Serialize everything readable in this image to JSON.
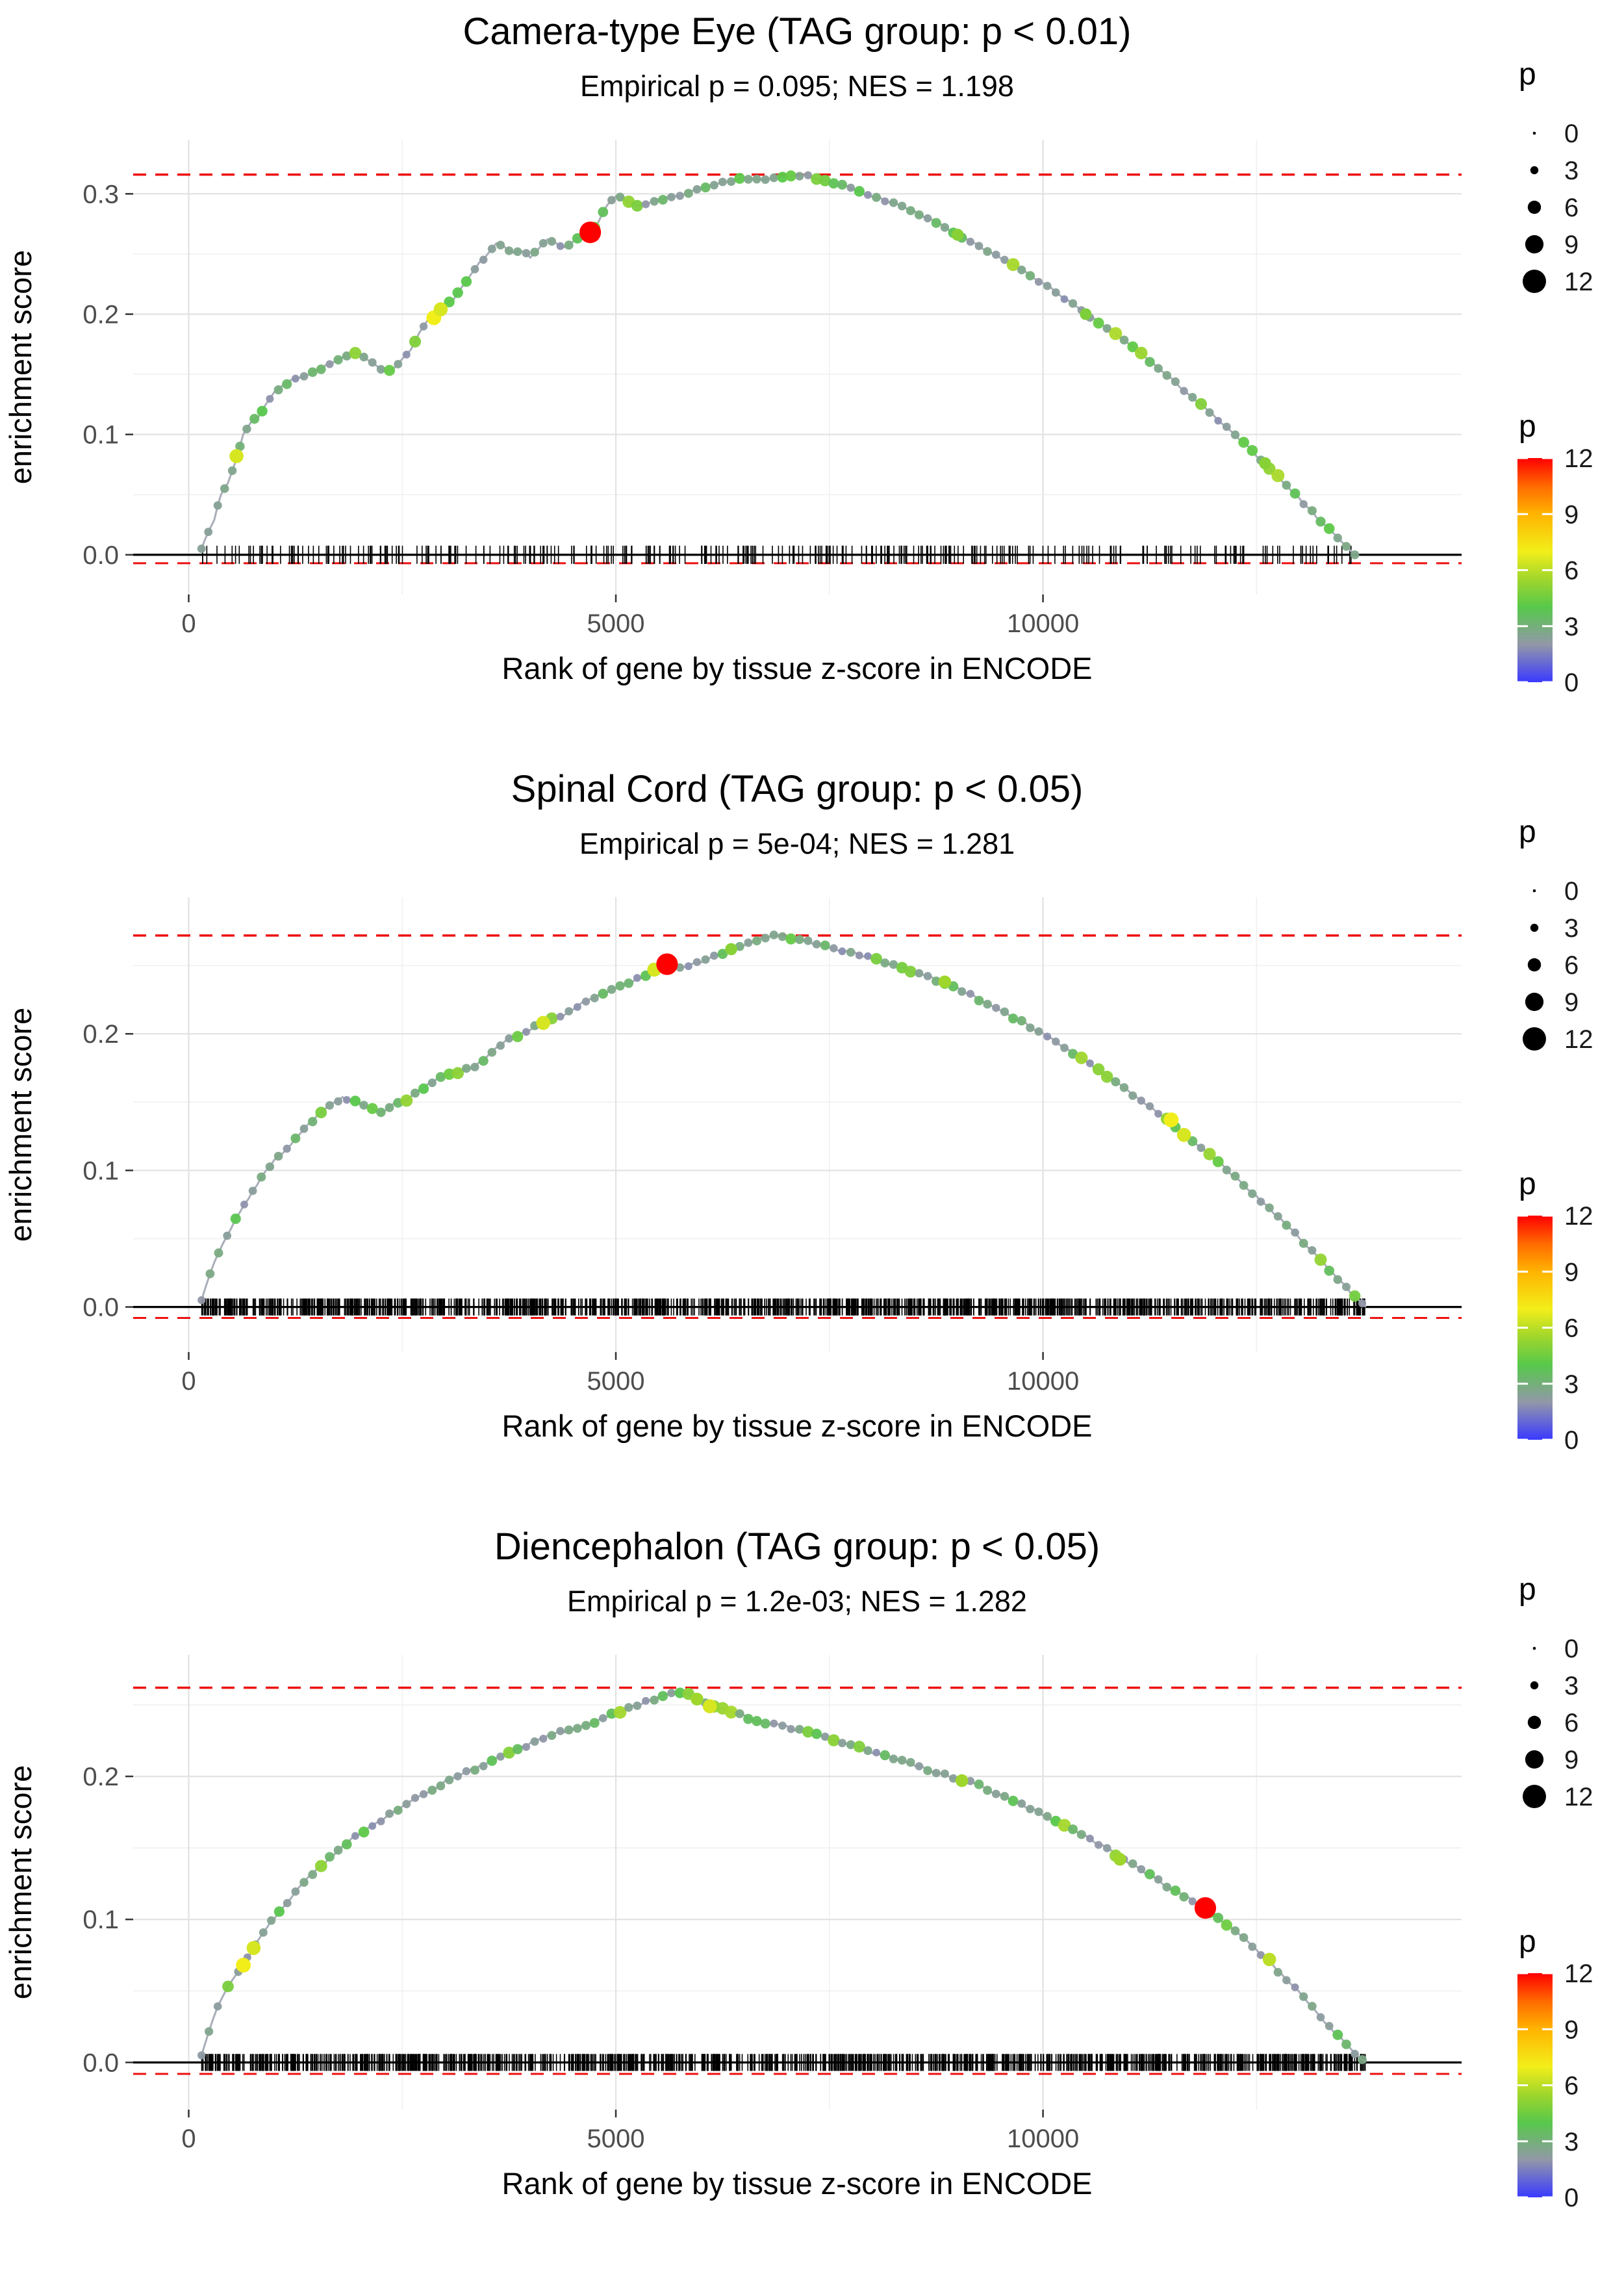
{
  "chart_data": [
    {
      "type": "line",
      "title": "Camera-type Eye (TAG group: p < 0.01)",
      "subtitle": "Empirical p = 0.095; NES = 1.198",
      "empirical_p": "0.095",
      "nes": 1.198,
      "xlabel": "Rank of gene by tissue z-score in ENCODE",
      "ylabel": "enrichment score",
      "xlim": [
        -650,
        14900
      ],
      "ylim": [
        -0.033,
        0.345
      ],
      "x_ticks": [
        0,
        5000,
        10000
      ],
      "y_ticks": [
        0.0,
        0.1,
        0.2,
        0.3
      ],
      "max_es": 0.316,
      "zero_line": 0.0,
      "min_dashed": -0.007,
      "grid": true,
      "curve": [
        [
          150,
          0.005
        ],
        [
          230,
          0.02
        ],
        [
          300,
          0.03
        ],
        [
          380,
          0.05
        ],
        [
          460,
          0.06
        ],
        [
          560,
          0.08
        ],
        [
          640,
          0.1
        ],
        [
          720,
          0.11
        ],
        [
          820,
          0.115
        ],
        [
          900,
          0.125
        ],
        [
          1000,
          0.135
        ],
        [
          1100,
          0.14
        ],
        [
          1250,
          0.147
        ],
        [
          1400,
          0.15
        ],
        [
          1550,
          0.155
        ],
        [
          1700,
          0.16
        ],
        [
          1850,
          0.165
        ],
        [
          2000,
          0.168
        ],
        [
          2100,
          0.162
        ],
        [
          2200,
          0.158
        ],
        [
          2300,
          0.152
        ],
        [
          2400,
          0.155
        ],
        [
          2500,
          0.162
        ],
        [
          2600,
          0.17
        ],
        [
          2700,
          0.185
        ],
        [
          2800,
          0.196
        ],
        [
          2900,
          0.2
        ],
        [
          3000,
          0.208
        ],
        [
          3100,
          0.213
        ],
        [
          3200,
          0.222
        ],
        [
          3300,
          0.232
        ],
        [
          3400,
          0.242
        ],
        [
          3500,
          0.25
        ],
        [
          3600,
          0.258
        ],
        [
          3700,
          0.255
        ],
        [
          3800,
          0.25
        ],
        [
          3900,
          0.252
        ],
        [
          4000,
          0.248
        ],
        [
          4100,
          0.255
        ],
        [
          4200,
          0.262
        ],
        [
          4300,
          0.258
        ],
        [
          4400,
          0.255
        ],
        [
          4500,
          0.26
        ],
        [
          4600,
          0.265
        ],
        [
          4700,
          0.268
        ],
        [
          4800,
          0.278
        ],
        [
          4900,
          0.29
        ],
        [
          5000,
          0.299
        ],
        [
          5100,
          0.295
        ],
        [
          5200,
          0.291
        ],
        [
          5300,
          0.29
        ],
        [
          5400,
          0.292
        ],
        [
          5500,
          0.295
        ],
        [
          5700,
          0.298
        ],
        [
          5900,
          0.302
        ],
        [
          6100,
          0.306
        ],
        [
          6300,
          0.31
        ],
        [
          6500,
          0.313
        ],
        [
          6700,
          0.312
        ],
        [
          6900,
          0.314
        ],
        [
          7100,
          0.316
        ],
        [
          7300,
          0.314
        ],
        [
          7500,
          0.31
        ],
        [
          7700,
          0.306
        ],
        [
          7900,
          0.3
        ],
        [
          8100,
          0.296
        ],
        [
          8400,
          0.288
        ],
        [
          8700,
          0.278
        ],
        [
          9000,
          0.266
        ],
        [
          9300,
          0.254
        ],
        [
          9600,
          0.243
        ],
        [
          9900,
          0.23
        ],
        [
          10200,
          0.216
        ],
        [
          10500,
          0.2
        ],
        [
          10800,
          0.186
        ],
        [
          11100,
          0.17
        ],
        [
          11400,
          0.152
        ],
        [
          11700,
          0.134
        ],
        [
          12000,
          0.115
        ],
        [
          12300,
          0.096
        ],
        [
          12600,
          0.076
        ],
        [
          12900,
          0.054
        ],
        [
          13200,
          0.032
        ],
        [
          13450,
          0.014
        ],
        [
          13650,
          0.0
        ]
      ],
      "highlight": {
        "x": 4700,
        "y": 0.268,
        "p": 12
      },
      "notable_points": [
        [
          560,
          0.082,
          6.5
        ],
        [
          2870,
          0.197,
          7
        ],
        [
          2950,
          0.204,
          6.5
        ],
        [
          9000,
          0.266,
          5
        ],
        [
          10500,
          0.2,
          4.8
        ],
        [
          12600,
          0.076,
          5
        ]
      ],
      "rug": {
        "count": 330,
        "xmin": 150,
        "xmax": 13700,
        "seed": 101,
        "half": 14
      },
      "point_seed": 7
    },
    {
      "type": "line",
      "title": "Spinal Cord (TAG group: p < 0.05)",
      "subtitle": "Empirical p = 5e-04; NES = 1.281",
      "empirical_p": "5e-04",
      "nes": 1.281,
      "xlabel": "Rank of gene by tissue z-score in ENCODE",
      "ylabel": "enrichment score",
      "xlim": [
        -650,
        14900
      ],
      "ylim": [
        -0.033,
        0.3
      ],
      "x_ticks": [
        0,
        5000,
        10000
      ],
      "y_ticks": [
        0.0,
        0.1,
        0.2
      ],
      "max_es": 0.272,
      "zero_line": 0.0,
      "min_dashed": -0.008,
      "grid": true,
      "curve": [
        [
          150,
          0.005
        ],
        [
          250,
          0.025
        ],
        [
          350,
          0.04
        ],
        [
          450,
          0.052
        ],
        [
          600,
          0.07
        ],
        [
          750,
          0.085
        ],
        [
          900,
          0.1
        ],
        [
          1050,
          0.11
        ],
        [
          1200,
          0.12
        ],
        [
          1350,
          0.13
        ],
        [
          1500,
          0.14
        ],
        [
          1650,
          0.148
        ],
        [
          1800,
          0.153
        ],
        [
          1950,
          0.15
        ],
        [
          2100,
          0.146
        ],
        [
          2250,
          0.143
        ],
        [
          2400,
          0.148
        ],
        [
          2550,
          0.152
        ],
        [
          2700,
          0.158
        ],
        [
          2850,
          0.165
        ],
        [
          3000,
          0.17
        ],
        [
          3150,
          0.172
        ],
        [
          3300,
          0.175
        ],
        [
          3450,
          0.18
        ],
        [
          3600,
          0.19
        ],
        [
          3750,
          0.197
        ],
        [
          3900,
          0.2
        ],
        [
          4050,
          0.205
        ],
        [
          4200,
          0.21
        ],
        [
          4350,
          0.213
        ],
        [
          4500,
          0.218
        ],
        [
          4650,
          0.224
        ],
        [
          4800,
          0.228
        ],
        [
          4950,
          0.232
        ],
        [
          5100,
          0.236
        ],
        [
          5250,
          0.24
        ],
        [
          5400,
          0.245
        ],
        [
          5550,
          0.252
        ],
        [
          5700,
          0.249
        ],
        [
          5850,
          0.25
        ],
        [
          6000,
          0.253
        ],
        [
          6150,
          0.257
        ],
        [
          6300,
          0.26
        ],
        [
          6450,
          0.264
        ],
        [
          6600,
          0.268
        ],
        [
          6750,
          0.271
        ],
        [
          6900,
          0.272
        ],
        [
          7050,
          0.27
        ],
        [
          7200,
          0.268
        ],
        [
          7350,
          0.266
        ],
        [
          7500,
          0.263
        ],
        [
          7650,
          0.261
        ],
        [
          7800,
          0.259
        ],
        [
          8000,
          0.255
        ],
        [
          8300,
          0.25
        ],
        [
          8600,
          0.243
        ],
        [
          8900,
          0.236
        ],
        [
          9200,
          0.227
        ],
        [
          9500,
          0.217
        ],
        [
          9800,
          0.207
        ],
        [
          10100,
          0.196
        ],
        [
          10400,
          0.184
        ],
        [
          10700,
          0.171
        ],
        [
          11000,
          0.158
        ],
        [
          11300,
          0.144
        ],
        [
          11600,
          0.13
        ],
        [
          11900,
          0.114
        ],
        [
          12200,
          0.098
        ],
        [
          12500,
          0.081
        ],
        [
          12800,
          0.063
        ],
        [
          13100,
          0.044
        ],
        [
          13400,
          0.024
        ],
        [
          13650,
          0.008
        ],
        [
          13780,
          0.0
        ]
      ],
      "highlight": {
        "x": 5600,
        "y": 0.251,
        "p": 12
      },
      "notable_points": [
        [
          4150,
          0.208,
          6.5
        ],
        [
          5450,
          0.247,
          6.5
        ],
        [
          11500,
          0.137,
          7
        ],
        [
          11650,
          0.126,
          6.5
        ],
        [
          8850,
          0.238,
          5.5
        ],
        [
          6350,
          0.262,
          5
        ]
      ],
      "rug": {
        "count": 1250,
        "xmin": 150,
        "xmax": 13780,
        "seed": 202,
        "half": 13
      },
      "point_seed": 8
    },
    {
      "type": "line",
      "title": "Diencephalon (TAG group: p < 0.05)",
      "subtitle": "Empirical p = 1.2e-03; NES = 1.282",
      "empirical_p": "1.2e-03",
      "nes": 1.282,
      "xlabel": "Rank of gene by tissue z-score in ENCODE",
      "ylabel": "enrichment score",
      "xlim": [
        -650,
        14900
      ],
      "ylim": [
        -0.033,
        0.285
      ],
      "x_ticks": [
        0,
        5000,
        10000
      ],
      "y_ticks": [
        0.0,
        0.1,
        0.2
      ],
      "max_es": 0.262,
      "zero_line": 0.0,
      "min_dashed": -0.008,
      "grid": true,
      "curve": [
        [
          150,
          0.005
        ],
        [
          280,
          0.03
        ],
        [
          400,
          0.047
        ],
        [
          520,
          0.058
        ],
        [
          640,
          0.068
        ],
        [
          780,
          0.082
        ],
        [
          920,
          0.095
        ],
        [
          1060,
          0.105
        ],
        [
          1200,
          0.115
        ],
        [
          1350,
          0.126
        ],
        [
          1500,
          0.135
        ],
        [
          1650,
          0.143
        ],
        [
          1800,
          0.151
        ],
        [
          1950,
          0.158
        ],
        [
          2100,
          0.164
        ],
        [
          2250,
          0.169
        ],
        [
          2400,
          0.175
        ],
        [
          2550,
          0.181
        ],
        [
          2700,
          0.186
        ],
        [
          2850,
          0.19
        ],
        [
          3000,
          0.196
        ],
        [
          3150,
          0.2
        ],
        [
          3300,
          0.204
        ],
        [
          3450,
          0.208
        ],
        [
          3600,
          0.212
        ],
        [
          3750,
          0.216
        ],
        [
          3900,
          0.22
        ],
        [
          4050,
          0.224
        ],
        [
          4200,
          0.228
        ],
        [
          4350,
          0.231
        ],
        [
          4500,
          0.233
        ],
        [
          4650,
          0.236
        ],
        [
          4800,
          0.239
        ],
        [
          4950,
          0.243
        ],
        [
          5100,
          0.247
        ],
        [
          5250,
          0.25
        ],
        [
          5400,
          0.253
        ],
        [
          5550,
          0.257
        ],
        [
          5700,
          0.26
        ],
        [
          5850,
          0.257
        ],
        [
          6000,
          0.252
        ],
        [
          6150,
          0.248
        ],
        [
          6300,
          0.246
        ],
        [
          6450,
          0.243
        ],
        [
          6600,
          0.24
        ],
        [
          6750,
          0.237
        ],
        [
          6900,
          0.236
        ],
        [
          7050,
          0.234
        ],
        [
          7200,
          0.231
        ],
        [
          7350,
          0.229
        ],
        [
          7500,
          0.226
        ],
        [
          7650,
          0.224
        ],
        [
          7800,
          0.221
        ],
        [
          8000,
          0.217
        ],
        [
          8300,
          0.212
        ],
        [
          8600,
          0.206
        ],
        [
          8900,
          0.2
        ],
        [
          9200,
          0.195
        ],
        [
          9500,
          0.187
        ],
        [
          9800,
          0.179
        ],
        [
          10100,
          0.17
        ],
        [
          10400,
          0.161
        ],
        [
          10700,
          0.151
        ],
        [
          11000,
          0.14
        ],
        [
          11300,
          0.129
        ],
        [
          11600,
          0.118
        ],
        [
          11900,
          0.108
        ],
        [
          12200,
          0.094
        ],
        [
          12500,
          0.079
        ],
        [
          12800,
          0.061
        ],
        [
          13100,
          0.042
        ],
        [
          13400,
          0.022
        ],
        [
          13650,
          0.006
        ],
        [
          13780,
          0.0
        ]
      ],
      "highlight": {
        "x": 11900,
        "y": 0.108,
        "p": 12
      },
      "notable_points": [
        [
          640,
          0.068,
          7
        ],
        [
          760,
          0.08,
          6.5
        ],
        [
          6100,
          0.249,
          6.5
        ],
        [
          5950,
          0.254,
          5.5
        ],
        [
          9050,
          0.197,
          5.5
        ],
        [
          12650,
          0.072,
          6
        ],
        [
          10900,
          0.142,
          5.5
        ]
      ],
      "rug": {
        "count": 1250,
        "xmin": 150,
        "xmax": 13780,
        "seed": 303,
        "half": 13
      },
      "point_seed": 9
    }
  ],
  "legend_size": {
    "title": "p",
    "values": [
      0,
      3,
      6,
      9,
      12
    ]
  },
  "legend_color": {
    "title": "p",
    "ticks": [
      12,
      9,
      6,
      3,
      0
    ],
    "min": 0,
    "max": 12,
    "stops": [
      [
        0,
        "#3a3aff"
      ],
      [
        2,
        "#9297a8"
      ],
      [
        4,
        "#57c84b"
      ],
      [
        5.5,
        "#9fd62c"
      ],
      [
        7,
        "#f2ee1a"
      ],
      [
        9,
        "#ffb400"
      ],
      [
        10.5,
        "#ff6a00"
      ],
      [
        12,
        "#ff0000"
      ]
    ]
  },
  "style_colors": {
    "dashed_line": "#ee1111",
    "zero_line": "#000000",
    "curve_line": "#a9aeb9",
    "grid_major": "#e2e2e2",
    "grid_minor": "#f0f0f0"
  }
}
